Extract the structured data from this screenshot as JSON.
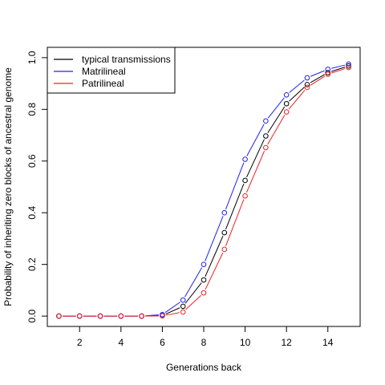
{
  "chart_data": {
    "type": "line",
    "xlabel": "Generations back",
    "ylabel": "Probability of inheriting zero blocks of ancestral genome",
    "xlim": [
      0.44,
      15.56
    ],
    "ylim": [
      -0.04,
      1.04
    ],
    "x_ticks": [
      2,
      4,
      6,
      8,
      10,
      12,
      14
    ],
    "y_ticks": [
      0.0,
      0.2,
      0.4,
      0.6,
      0.8,
      1.0
    ],
    "x_tick_labels": [
      "2",
      "4",
      "6",
      "8",
      "10",
      "12",
      "14"
    ],
    "y_tick_labels": [
      "0.0",
      "0.2",
      "0.4",
      "0.6",
      "0.8",
      "1.0"
    ],
    "legend_position": "top-left",
    "grid": false,
    "x": [
      1,
      2,
      3,
      4,
      5,
      6,
      7,
      8,
      9,
      10,
      11,
      12,
      13,
      14,
      15
    ],
    "series": [
      {
        "name": "typical transmissions",
        "color": "#000000",
        "values": [
          0.0,
          0.0,
          0.0,
          0.0,
          0.0,
          0.002,
          0.038,
          0.14,
          0.323,
          0.525,
          0.697,
          0.822,
          0.896,
          0.942,
          0.968
        ]
      },
      {
        "name": "Matrilineal",
        "color": "#2020ee",
        "values": [
          0.0,
          0.0,
          0.0,
          0.0,
          0.0,
          0.006,
          0.062,
          0.2,
          0.4,
          0.607,
          0.755,
          0.856,
          0.922,
          0.955,
          0.975
        ]
      },
      {
        "name": "Patrilineal",
        "color": "#ee2020",
        "values": [
          0.0,
          0.0,
          0.0,
          0.0,
          0.0,
          0.001,
          0.016,
          0.09,
          0.258,
          0.465,
          0.652,
          0.79,
          0.885,
          0.936,
          0.962
        ]
      }
    ]
  }
}
